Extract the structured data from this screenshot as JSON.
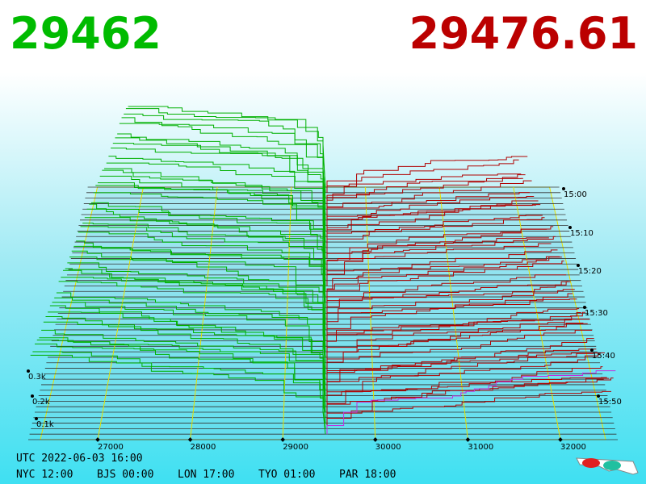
{
  "header": {
    "bid": "29462",
    "ask": "29476.61"
  },
  "price_axis": {
    "labels": [
      "27000",
      "28000",
      "29000",
      "30000",
      "31000",
      "32000"
    ]
  },
  "time_axis": {
    "labels": [
      "15:00",
      "15:10",
      "15:20",
      "15:30",
      "15:40",
      "15:50"
    ]
  },
  "depth_axis": {
    "labels": [
      "0.3k",
      "0.2k",
      "0.1k"
    ]
  },
  "footer": {
    "utc": "UTC 2022-06-03 16:00",
    "clocks": [
      "NYC 12:00",
      "BJS 00:00",
      "LON 17:00",
      "TYO 01:00",
      "PAR 18:00"
    ]
  }
}
